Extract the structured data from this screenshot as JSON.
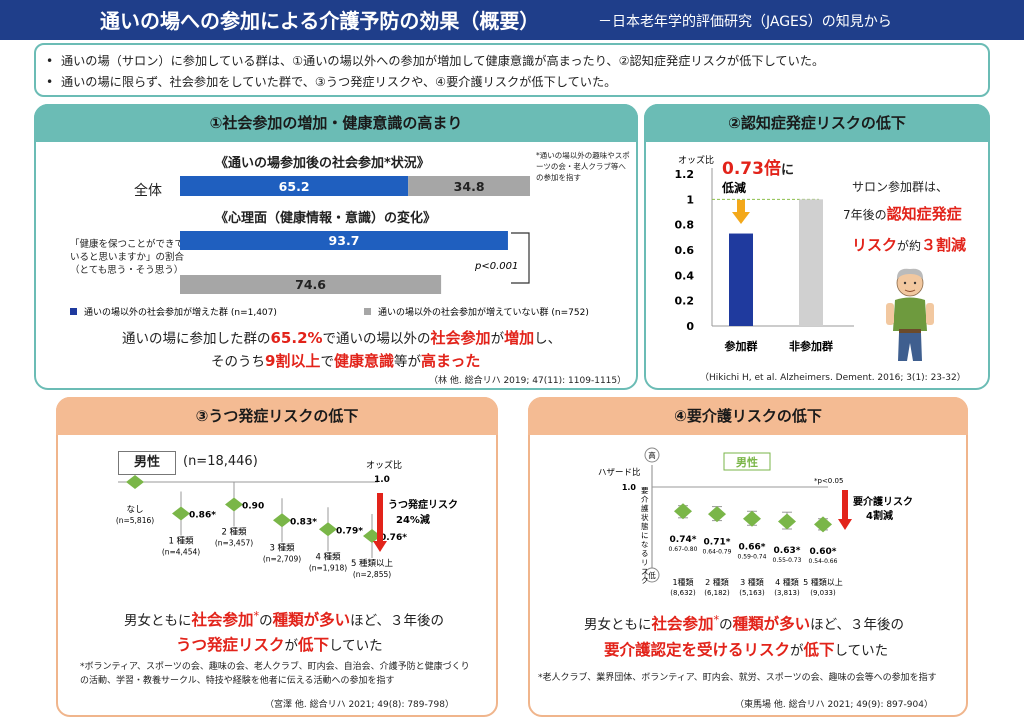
{
  "header": {
    "title": "通いの場への参加による介護予防の効果（概要）",
    "subtitle": "－日本老年学的評価研究（JAGES）の知見から"
  },
  "summary": {
    "line1": "通いの場（サロン）に参加している群は、①通いの場以外への参加が増加して健康意識が高まったり、②認知症発症リスクが低下していた。",
    "line2": "通いの場に限らず、社会参加をしていた群で、③うつ発症リスクや、④要介護リスクが低下していた。"
  },
  "p1": {
    "title": "①社会参加の増加・健康意識の高まり",
    "sub1": "《通いの場参加後の社会参加*状況》",
    "note1": "*通いの場以外の趣味やスポーツの会・老人クラブ等への参加を指す",
    "zentai": "全体",
    "sub2": "《心理面（健康情報・意識）の変化》",
    "q1": "「健康を保つことができて",
    "q2": "いると思いますか」の割合",
    "q3": "（とても思う・そう思う）",
    "pval": "p<0.001",
    "legend_a": "通いの場以外の社会参加が増えた群 (n=1,407)",
    "legend_b": "通いの場以外の社会参加が増えていない群 (n=752)",
    "c1a": "通いの場に参加した群の",
    "c1b": "65.2%",
    "c1c": "で通いの場以外の",
    "c1d": "社会参加",
    "c1e": "が",
    "c1f": "増加",
    "c1g": "し、",
    "c2a": "そのうち",
    "c2b": "9割以上",
    "c2c": "で",
    "c2d": "健康意識",
    "c2e": "等が",
    "c2f": "高まった",
    "ref": "（林 他. 総合リハ 2019; 47(11): 1109-1115）",
    "colors": {
      "blue": "#1f5fbf",
      "gray": "#a6a6a6"
    }
  },
  "p2": {
    "title": "②認知症発症リスクの低下",
    "s1": "サロン参加群は、",
    "s2": "7年後の",
    "s3": "認知症発症",
    "s4": "リスク",
    "s5": "が約",
    "s6": "３割減",
    "ref": "（Hikichi H, et al. Alzheimers. Dement. 2016; 3(1): 23-32）"
  },
  "p3": {
    "title": "③うつ発症リスクの低下",
    "sex": "男性",
    "n": "(n=18,446)",
    "risk1": "うつ発症リスク",
    "risk2": "24%減",
    "c1a": "男女ともに",
    "c1b": "社会参加",
    "c1c": "*",
    "c1d": "の",
    "c1e": "種類が多い",
    "c1f": "ほど、３年後の",
    "c2a": "うつ発症リスク",
    "c2b": "が",
    "c2c": "低下",
    "c2d": "していた",
    "note1": "*ボランティア、スポーツの会、趣味の会、老人クラブ、町内会、自治会、介護予防と健康づくり",
    "note2": "の活動、学習・教養サークル、特技や経験を他者に伝える活動への参加を指す",
    "ref": "（宮澤 他. 総合リハ 2021; 49(8): 789-798）"
  },
  "p4": {
    "title": "④要介護リスクの低下",
    "sex": "男性",
    "hi": "高",
    "lo": "低",
    "pnote": "*p<0.05",
    "risk1": "要介護リスク",
    "risk2": "4割減",
    "c1a": "男女ともに",
    "c1b": "社会参加",
    "c1c": "*",
    "c1d": "の",
    "c1e": "種類が多い",
    "c1f": "ほど、３年後の",
    "c2a": "要介護認定を受けるリスク",
    "c2b": "が",
    "c2c": "低下",
    "c2d": "していた",
    "note": "*老人クラブ、業界団体、ボランティア、町内会、就労、スポーツの会、趣味の会等への参加を指す",
    "ref": "（東馬場 他. 総合リハ 2021; 49(9): 897-904）"
  },
  "chart_data": [
    {
      "type": "bar",
      "title": "《通いの場参加後の社会参加*状況》",
      "orientation": "horizontal",
      "stacked": true,
      "categories": [
        "全体"
      ],
      "series": [
        {
          "name": "通いの場以外の社会参加が増えた群 (n=1,407)",
          "values": [
            65.2
          ]
        },
        {
          "name": "通いの場以外の社会参加が増えていない群 (n=752)",
          "values": [
            34.8
          ]
        }
      ],
      "labels": [
        "65.2",
        "34.8"
      ]
    },
    {
      "type": "bar",
      "title": "《心理面（健康情報・意識）の変化》",
      "orientation": "horizontal",
      "xlim": [
        0,
        100
      ],
      "categories": [
        "通いの場以外の社会参加が増えた群 (n=1,407)",
        "通いの場以外の社会参加が増えていない群 (n=752)"
      ],
      "values": [
        93.7,
        74.6
      ],
      "labels": [
        "93.7",
        "74.6"
      ],
      "annotation": "p<0.001"
    },
    {
      "type": "bar",
      "ylabel": "オッズ比",
      "ylim": [
        0,
        1.2
      ],
      "yticks": [
        0,
        0.2,
        0.4,
        0.6,
        0.8,
        1,
        1.2
      ],
      "ytick_labels": [
        "0",
        "0.2",
        "0.4",
        "0.6",
        "0.8",
        "1",
        "1.2"
      ],
      "categories": [
        "参加群",
        "非参加群"
      ],
      "values": [
        0.73,
        1.0
      ],
      "annotation": {
        "value": "0.73倍",
        "suffix": "に",
        "text": "低減"
      },
      "reference_line": 1
    },
    {
      "type": "scatter",
      "ylabel": "オッズ比",
      "reference_label": "1.0",
      "reference": 1.0,
      "ylim": [
        0.72,
        1.0
      ],
      "categories": [
        "なし",
        "1 種類",
        "2 種類",
        "3 種類",
        "4 種類",
        "5 種類以上"
      ],
      "n": [
        "(n=5,816)",
        "(n=4,454)",
        "(n=3,457)",
        "(n=2,709)",
        "(n=1,918)",
        "(n=2,855)"
      ],
      "values": [
        1.0,
        0.86,
        0.9,
        0.83,
        0.79,
        0.76
      ],
      "labels": [
        "",
        "0.86*",
        "0.90",
        "0.83*",
        "0.79*",
        "0.76*"
      ]
    },
    {
      "type": "scatter",
      "ylabel": "ハザード比",
      "y2label": "要介護状態になるリスク",
      "reference_label": "1.0",
      "reference": 1.0,
      "ylim": [
        0.4,
        1.0
      ],
      "categories": [
        "1種類",
        "2 種類",
        "3 種類",
        "4 種類",
        "5 種類以上"
      ],
      "n": [
        "(8,632)",
        "(6,182)",
        "(5,163)",
        "(3,813)",
        "(9,033)"
      ],
      "values": [
        0.74,
        0.71,
        0.66,
        0.63,
        0.6
      ],
      "labels": [
        "0.74*",
        "0.71*",
        "0.66*",
        "0.63*",
        "0.60*"
      ],
      "ci": [
        "0.67-0.80",
        "0.64-0.79",
        "0.59-0.74",
        "0.55-0.73",
        "0.54-0.66"
      ],
      "ci_low": [
        0.67,
        0.64,
        0.59,
        0.55,
        0.54
      ],
      "ci_high": [
        0.8,
        0.79,
        0.74,
        0.73,
        0.66
      ]
    }
  ]
}
